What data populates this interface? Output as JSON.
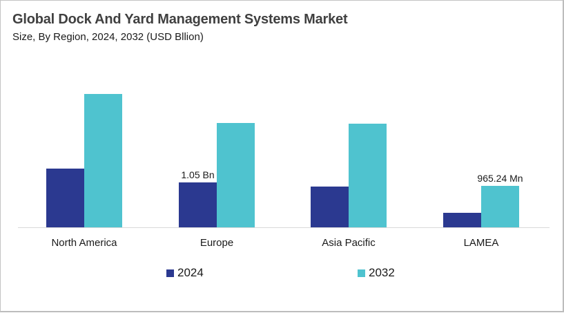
{
  "header": {
    "title": "Global Dock And Yard Management Systems Market",
    "subtitle": "Size, By Region, 2024, 2032 (USD Bllion)"
  },
  "legend": [
    {
      "label": "2024",
      "color": "#2b3990"
    },
    {
      "label": "2032",
      "color": "#4fc3cf"
    }
  ],
  "data_labels": {
    "europe_2024": "1.05 Bn",
    "lamea_2032": "965.24 Mn"
  },
  "chart_data": {
    "type": "bar",
    "title": "Global Dock And Yard Management Systems Market",
    "subtitle": "Size, By Region, 2024, 2032 (USD Bllion)",
    "xlabel": "",
    "ylabel": "USD Billion",
    "categories": [
      "North America",
      "Europe",
      "Asia Pacific",
      "LAMEA"
    ],
    "series": [
      {
        "name": "2024",
        "color": "#2b3990",
        "values": [
          1.37,
          1.05,
          0.95,
          0.34
        ]
      },
      {
        "name": "2032",
        "color": "#4fc3cf",
        "values": [
          3.12,
          2.44,
          2.42,
          0.965
        ]
      }
    ],
    "annotations": [
      {
        "category": "Europe",
        "series": "2024",
        "text": "1.05 Bn"
      },
      {
        "category": "LAMEA",
        "series": "2032",
        "text": "965.24 Mn"
      }
    ],
    "ylim": [
      0,
      3.3
    ],
    "grid": false,
    "y_axis_visible": false,
    "legend_position": "bottom"
  }
}
